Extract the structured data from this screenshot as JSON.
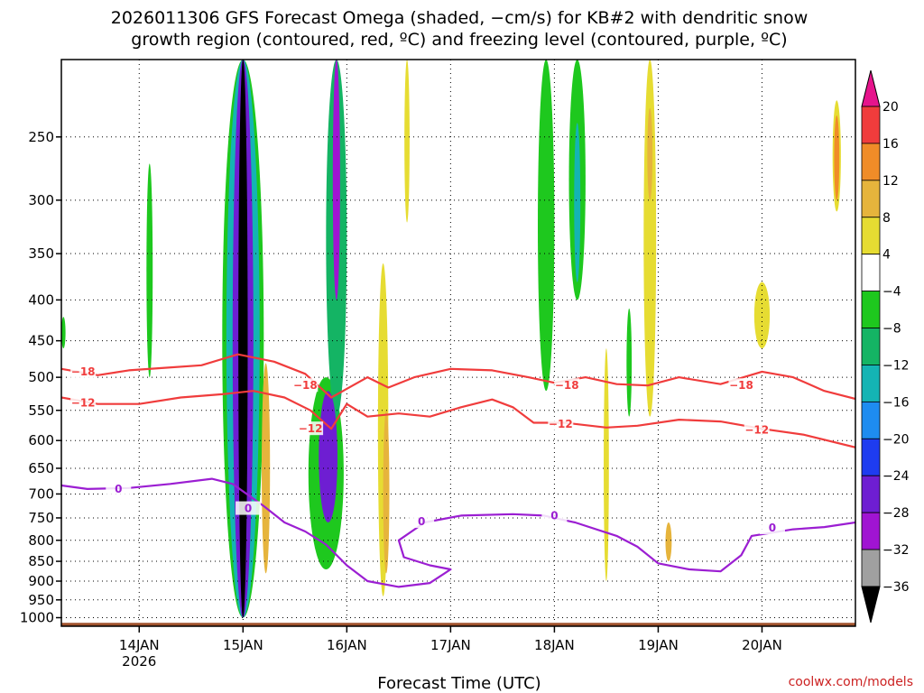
{
  "chart_data": {
    "type": "heatmap",
    "title_line1": "2026011306 GFS Forecast Omega (shaded, −cm/s) for KB#2 with dendritic snow",
    "title_line2": "growth region (contoured, red, ºC) and freezing level (contoured, purple, ºC)",
    "xlabel": "Forecast Time (UTC)",
    "ylabel": "",
    "credit": "coolwx.com/models",
    "x_axis": {
      "units": "days after 2026-01-13 00Z",
      "range": [
        0.25,
        7.9
      ],
      "ticks": [
        {
          "day": 1,
          "label": "14JAN",
          "sub": "2026"
        },
        {
          "day": 2,
          "label": "15JAN",
          "sub": ""
        },
        {
          "day": 3,
          "label": "16JAN",
          "sub": ""
        },
        {
          "day": 4,
          "label": "17JAN",
          "sub": ""
        },
        {
          "day": 5,
          "label": "18JAN",
          "sub": ""
        },
        {
          "day": 6,
          "label": "19JAN",
          "sub": ""
        },
        {
          "day": 7,
          "label": "20JAN",
          "sub": ""
        }
      ]
    },
    "y_axis": {
      "units": "hPa",
      "range": [
        1025,
        200
      ],
      "ticks": [
        250,
        300,
        350,
        400,
        450,
        500,
        550,
        600,
        650,
        700,
        750,
        800,
        850,
        900,
        950,
        1000
      ]
    },
    "colorbar": {
      "labels": [
        "20",
        "16",
        "12",
        "8",
        "4",
        "−4",
        "−8",
        "−12",
        "−16",
        "−20",
        "−24",
        "−28",
        "−32",
        "−36"
      ],
      "levels": [
        {
          "from": 16,
          "to": 20,
          "color": "#f03c3c"
        },
        {
          "from": 12,
          "to": 16,
          "color": "#f08c28"
        },
        {
          "from": 8,
          "to": 12,
          "color": "#e6b43c"
        },
        {
          "from": 4,
          "to": 8,
          "color": "#e6dc32"
        },
        {
          "from": -4,
          "to": 4,
          "color": "#ffffff"
        },
        {
          "from": -8,
          "to": -4,
          "color": "#1ec81e"
        },
        {
          "from": -12,
          "to": -8,
          "color": "#14b464"
        },
        {
          "from": -16,
          "to": -12,
          "color": "#14b4b4"
        },
        {
          "from": -20,
          "to": -16,
          "color": "#1e8cf0"
        },
        {
          "from": -24,
          "to": -20,
          "color": "#1e3cf0"
        },
        {
          "from": -28,
          "to": -24,
          "color": "#6e1ed2"
        },
        {
          "from": -32,
          "to": -28,
          "color": "#a014d2"
        },
        {
          "from": -36,
          "to": -32,
          "color": "#a0a0a0"
        }
      ],
      "over_color": "#e6148c",
      "under_color": "#000000"
    },
    "omega_regions": [
      {
        "day": 2.0,
        "p_top": 200,
        "p_bot": 1000,
        "value": -40,
        "width_days": 0.09
      },
      {
        "day": 2.0,
        "p_top": 200,
        "p_bot": 1000,
        "value": -26,
        "width_days": 0.2
      },
      {
        "day": 2.0,
        "p_top": 200,
        "p_bot": 1000,
        "value": -14,
        "width_days": 0.32
      },
      {
        "day": 2.0,
        "p_top": 200,
        "p_bot": 1000,
        "value": -6,
        "width_days": 0.4
      },
      {
        "day": 2.22,
        "p_top": 480,
        "p_bot": 880,
        "value": 10,
        "width_days": 0.08
      },
      {
        "day": 2.9,
        "p_top": 200,
        "p_bot": 400,
        "value": -30,
        "width_days": 0.07
      },
      {
        "day": 2.9,
        "p_top": 200,
        "p_bot": 560,
        "value": -12,
        "width_days": 0.2
      },
      {
        "day": 2.82,
        "p_top": 520,
        "p_bot": 760,
        "value": -26,
        "width_days": 0.18
      },
      {
        "day": 2.8,
        "p_top": 500,
        "p_bot": 870,
        "value": -6,
        "width_days": 0.34
      },
      {
        "day": 3.35,
        "p_top": 360,
        "p_bot": 940,
        "value": 6,
        "width_days": 0.1
      },
      {
        "day": 3.38,
        "p_top": 550,
        "p_bot": 880,
        "value": 10,
        "width_days": 0.06
      },
      {
        "day": 3.58,
        "p_top": 200,
        "p_bot": 320,
        "value": 6,
        "width_days": 0.05
      },
      {
        "day": 4.92,
        "p_top": 200,
        "p_bot": 520,
        "value": -6,
        "width_days": 0.16
      },
      {
        "day": 5.22,
        "p_top": 240,
        "p_bot": 380,
        "value": -14,
        "width_days": 0.06
      },
      {
        "day": 5.22,
        "p_top": 200,
        "p_bot": 400,
        "value": -6,
        "width_days": 0.16
      },
      {
        "day": 5.5,
        "p_top": 460,
        "p_bot": 900,
        "value": 6,
        "width_days": 0.05
      },
      {
        "day": 5.72,
        "p_top": 410,
        "p_bot": 560,
        "value": -6,
        "width_days": 0.05
      },
      {
        "day": 5.92,
        "p_top": 200,
        "p_bot": 560,
        "value": 6,
        "width_days": 0.12
      },
      {
        "day": 5.92,
        "p_top": 230,
        "p_bot": 300,
        "value": 10,
        "width_days": 0.05
      },
      {
        "day": 7.0,
        "p_top": 380,
        "p_bot": 460,
        "value": 6,
        "width_days": 0.15
      },
      {
        "day": 7.72,
        "p_top": 235,
        "p_bot": 300,
        "value": 14,
        "width_days": 0.05
      },
      {
        "day": 7.72,
        "p_top": 225,
        "p_bot": 310,
        "value": 6,
        "width_days": 0.08
      },
      {
        "day": 6.1,
        "p_top": 760,
        "p_bot": 850,
        "value": 10,
        "width_days": 0.06
      },
      {
        "day": 1.1,
        "p_top": 270,
        "p_bot": 500,
        "value": -6,
        "width_days": 0.06
      },
      {
        "day": 0.27,
        "p_top": 420,
        "p_bot": 460,
        "value": -6,
        "width_days": 0.04
      }
    ],
    "contours": [
      {
        "name": "-18",
        "color": "#f03c3c",
        "label_day": 0.45,
        "points": [
          [
            0.25,
            488
          ],
          [
            0.6,
            497
          ],
          [
            0.9,
            490
          ],
          [
            1.2,
            487
          ],
          [
            1.6,
            483
          ],
          [
            1.95,
            468
          ],
          [
            2.3,
            478
          ],
          [
            2.6,
            495
          ],
          [
            2.85,
            530
          ],
          [
            3.2,
            500
          ],
          [
            3.4,
            515
          ],
          [
            3.65,
            500
          ],
          [
            4.0,
            488
          ],
          [
            4.4,
            490
          ],
          [
            4.75,
            500
          ],
          [
            5.0,
            508
          ],
          [
            5.3,
            500
          ],
          [
            5.6,
            510
          ],
          [
            5.9,
            512
          ],
          [
            6.2,
            500
          ],
          [
            6.6,
            510
          ],
          [
            7.0,
            492
          ],
          [
            7.3,
            500
          ],
          [
            7.6,
            520
          ],
          [
            7.9,
            532
          ]
        ]
      },
      {
        "name": "-12",
        "color": "#f03c3c",
        "label_day": 0.45,
        "points": [
          [
            0.25,
            530
          ],
          [
            0.6,
            540
          ],
          [
            1.0,
            540
          ],
          [
            1.4,
            530
          ],
          [
            1.8,
            525
          ],
          [
            2.1,
            520
          ],
          [
            2.4,
            530
          ],
          [
            2.65,
            550
          ],
          [
            2.85,
            580
          ],
          [
            3.0,
            540
          ],
          [
            3.2,
            560
          ],
          [
            3.5,
            555
          ],
          [
            3.8,
            560
          ],
          [
            4.1,
            545
          ],
          [
            4.4,
            533
          ],
          [
            4.6,
            545
          ],
          [
            4.8,
            570
          ],
          [
            5.1,
            570
          ],
          [
            5.5,
            578
          ],
          [
            5.8,
            575
          ],
          [
            6.2,
            565
          ],
          [
            6.6,
            568
          ],
          [
            7.0,
            580
          ],
          [
            7.4,
            590
          ],
          [
            7.9,
            612
          ]
        ]
      },
      {
        "name": "0",
        "color": "#9b1ed2",
        "label_day": 0.8,
        "points": [
          [
            0.25,
            683
          ],
          [
            0.5,
            690
          ],
          [
            0.9,
            688
          ],
          [
            1.3,
            680
          ],
          [
            1.7,
            670
          ],
          [
            1.9,
            680
          ],
          [
            2.2,
            725
          ],
          [
            2.4,
            760
          ],
          [
            2.6,
            780
          ],
          [
            2.8,
            810
          ],
          [
            3.0,
            860
          ],
          [
            3.2,
            900
          ],
          [
            3.5,
            915
          ],
          [
            3.8,
            905
          ],
          [
            4.0,
            870
          ],
          [
            3.8,
            860
          ],
          [
            3.55,
            840
          ],
          [
            3.5,
            800
          ],
          [
            3.75,
            760
          ],
          [
            4.1,
            745
          ],
          [
            4.6,
            742
          ],
          [
            4.9,
            745
          ],
          [
            5.2,
            760
          ],
          [
            5.6,
            790
          ],
          [
            5.8,
            815
          ],
          [
            6.0,
            855
          ],
          [
            6.3,
            870
          ],
          [
            6.6,
            875
          ],
          [
            6.8,
            835
          ],
          [
            6.9,
            790
          ],
          [
            7.3,
            775
          ],
          [
            7.6,
            770
          ],
          [
            7.9,
            760
          ]
        ]
      }
    ],
    "contour_labels": [
      {
        "text": "−18",
        "day": 0.46,
        "p": 492,
        "color": "#f03c3c"
      },
      {
        "text": "−12",
        "day": 0.46,
        "p": 538,
        "color": "#f03c3c"
      },
      {
        "text": "−18",
        "day": 2.6,
        "p": 512,
        "color": "#f03c3c"
      },
      {
        "text": "−12",
        "day": 2.65,
        "p": 580,
        "color": "#f03c3c"
      },
      {
        "text": "−18",
        "day": 5.12,
        "p": 512,
        "color": "#f03c3c"
      },
      {
        "text": "−12",
        "day": 5.06,
        "p": 572,
        "color": "#f03c3c"
      },
      {
        "text": "−18",
        "day": 6.8,
        "p": 512,
        "color": "#f03c3c"
      },
      {
        "text": "−12",
        "day": 6.95,
        "p": 582,
        "color": "#f03c3c"
      },
      {
        "text": "0",
        "day": 0.8,
        "p": 690,
        "color": "#9b1ed2"
      },
      {
        "text": "0",
        "day": 2.05,
        "p": 730,
        "color": "#9b1ed2"
      },
      {
        "text": "0",
        "day": 3.72,
        "p": 758,
        "color": "#9b1ed2"
      },
      {
        "text": "0",
        "day": 5.0,
        "p": 745,
        "color": "#9b1ed2"
      },
      {
        "text": "0",
        "day": 7.1,
        "p": 772,
        "color": "#9b1ed2"
      }
    ],
    "terrain": {
      "p_surface": 1015,
      "color": "#a0522d"
    }
  }
}
